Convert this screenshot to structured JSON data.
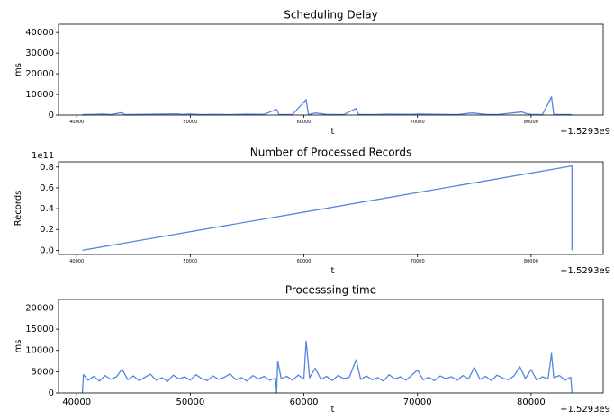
{
  "chart_data": [
    {
      "type": "line",
      "title": "Scheduling Delay",
      "ylabel": "ms",
      "xlabel": "t",
      "x_offset_text": "+1.5293e9",
      "xlim": [
        38400,
        86350
      ],
      "xticks": [
        40000,
        50000,
        60000,
        70000,
        80000
      ],
      "ylim": [
        0,
        44000
      ],
      "yticks": [
        0,
        10000,
        20000,
        30000,
        40000
      ],
      "color": "#5585e0",
      "x": [
        40500,
        41500,
        42300,
        43000,
        44000,
        44200,
        45500,
        47000,
        48800,
        49200,
        50000,
        51000,
        52200,
        53500,
        55000,
        56500,
        57600,
        57800,
        59000,
        60200,
        60400,
        61000,
        62000,
        63500,
        64600,
        64800,
        66000,
        67500,
        69500,
        70000,
        72000,
        73500,
        74800,
        76000,
        77000,
        79200,
        79500,
        80000,
        81000,
        81800,
        82000,
        83600
      ],
      "values": [
        200,
        300,
        500,
        200,
        1200,
        200,
        300,
        400,
        600,
        300,
        500,
        200,
        300,
        200,
        400,
        300,
        2800,
        200,
        300,
        7500,
        200,
        1000,
        300,
        200,
        3200,
        300,
        200,
        400,
        300,
        500,
        300,
        200,
        1000,
        300,
        200,
        1500,
        800,
        300,
        200,
        8800,
        300,
        200
      ]
    },
    {
      "type": "line",
      "title": "Number of Processed Records",
      "ylabel": "Records",
      "xlabel": "t",
      "x_offset_text": "+1.5293e9",
      "y_offset_text": "1e11",
      "xlim": [
        38400,
        86350
      ],
      "xticks": [
        40000,
        50000,
        60000,
        70000,
        80000
      ],
      "ylim": [
        -0.04,
        0.85
      ],
      "yticks": [
        {
          "value": 0,
          "label": "0.0"
        },
        0.2,
        0.4,
        0.6,
        0.8
      ],
      "color": "#5585e0",
      "x": [
        40500,
        83600,
        83600
      ],
      "values": [
        0,
        0.81,
        0
      ]
    },
    {
      "type": "line",
      "title": "Processsing time",
      "ylabel": "ms",
      "xlabel": "t",
      "x_offset_text": "+1.5293e9",
      "xlim": [
        38400,
        86350
      ],
      "xticks": [
        40000,
        50000,
        60000,
        70000,
        80000
      ],
      "ylim": [
        0,
        22000
      ],
      "yticks": [
        0,
        5000,
        10000,
        15000,
        20000
      ],
      "color": "#5585e0",
      "x": [
        40500,
        40600,
        41000,
        41500,
        42000,
        42500,
        43000,
        43500,
        44000,
        44500,
        45000,
        45500,
        46000,
        46500,
        47000,
        47500,
        48000,
        48500,
        49000,
        49500,
        50000,
        50500,
        51000,
        51500,
        52000,
        52500,
        53000,
        53500,
        54000,
        54500,
        55000,
        55500,
        56000,
        56500,
        57000,
        57500,
        57600,
        57700,
        58000,
        58500,
        59000,
        59500,
        60000,
        60200,
        60500,
        61000,
        61500,
        62000,
        62500,
        63000,
        63500,
        64000,
        64600,
        65000,
        65500,
        66000,
        66500,
        67000,
        67500,
        68000,
        68500,
        69000,
        69500,
        70000,
        70500,
        71000,
        71500,
        72000,
        72500,
        73000,
        73500,
        74000,
        74500,
        75000,
        75500,
        76000,
        76500,
        77000,
        77500,
        78000,
        78500,
        79000,
        79500,
        80000,
        80500,
        81000,
        81500,
        81800,
        82000,
        82500,
        83000,
        83500,
        83600
      ],
      "values": [
        0,
        4300,
        3000,
        3900,
        2800,
        4100,
        3200,
        3800,
        5600,
        3100,
        4000,
        2900,
        3700,
        4400,
        3000,
        3600,
        2700,
        4200,
        3300,
        3800,
        3000,
        4300,
        3400,
        2900,
        4000,
        3200,
        3700,
        4500,
        3100,
        3600,
        2800,
        4100,
        3300,
        3900,
        3000,
        3500,
        0,
        7500,
        3400,
        3900,
        3000,
        4200,
        3300,
        12200,
        3600,
        5800,
        3200,
        3900,
        2900,
        4100,
        3400,
        3700,
        7800,
        3200,
        4000,
        3100,
        3600,
        2800,
        4300,
        3300,
        3800,
        3000,
        4200,
        5400,
        3100,
        3700,
        2900,
        4000,
        3400,
        3800,
        3000,
        4100,
        3300,
        6000,
        3200,
        3900,
        2900,
        4200,
        3500,
        3100,
        4000,
        6200,
        3400,
        5500,
        3000,
        3800,
        3300,
        9300,
        3600,
        4100,
        3000,
        3700,
        0
      ]
    }
  ]
}
